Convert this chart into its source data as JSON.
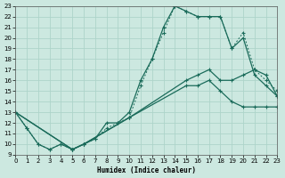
{
  "xlabel": "Humidex (Indice chaleur)",
  "bg_color": "#cce8e0",
  "grid_color": "#add4ca",
  "line_color": "#1a6b5a",
  "xlim": [
    0,
    23
  ],
  "ylim": [
    9,
    23
  ],
  "xticks": [
    0,
    1,
    2,
    3,
    4,
    5,
    6,
    7,
    8,
    9,
    10,
    11,
    12,
    13,
    14,
    15,
    16,
    17,
    18,
    19,
    20,
    21,
    22,
    23
  ],
  "yticks": [
    9,
    10,
    11,
    12,
    13,
    14,
    15,
    16,
    17,
    18,
    19,
    20,
    21,
    22,
    23
  ],
  "curve_main_solid_x": [
    0,
    1,
    2,
    3,
    4,
    5,
    6,
    7,
    8,
    9,
    10,
    11,
    12,
    13,
    14,
    15,
    16,
    17,
    18,
    19,
    20,
    21,
    22,
    23
  ],
  "curve_main_solid_y": [
    13,
    11.5,
    10,
    9.5,
    10,
    9.5,
    10,
    10.5,
    12,
    12,
    13,
    16,
    18,
    21,
    23,
    22.5,
    22,
    22,
    22,
    19,
    20,
    16.5,
    15.5,
    14.5
  ],
  "curve_main_dot_x": [
    0,
    1,
    2,
    3,
    4,
    5,
    6,
    7,
    8,
    9,
    10,
    11,
    12,
    13,
    14,
    15,
    16,
    17,
    18,
    19,
    20,
    21,
    22,
    23
  ],
  "curve_main_dot_y": [
    13,
    11.5,
    10,
    9.5,
    10,
    9.5,
    10,
    10.5,
    11.5,
    12,
    12.5,
    15.5,
    18,
    20.5,
    23,
    22.5,
    22,
    22,
    22,
    19,
    20.5,
    17,
    16,
    15
  ],
  "curve_flat1_x": [
    0,
    5,
    6,
    10,
    15,
    16,
    17,
    18,
    19,
    20,
    21,
    22,
    23
  ],
  "curve_flat1_y": [
    13,
    9.5,
    10,
    12.5,
    16,
    16.5,
    17,
    16,
    16,
    16.5,
    17,
    16.5,
    14.5
  ],
  "curve_flat2_x": [
    0,
    5,
    6,
    10,
    15,
    16,
    17,
    18,
    19,
    20,
    21,
    22,
    23
  ],
  "curve_flat2_y": [
    13,
    9.5,
    10,
    12.5,
    15.5,
    15.5,
    16,
    15,
    14,
    13.5,
    13.5,
    13.5,
    13.5
  ]
}
